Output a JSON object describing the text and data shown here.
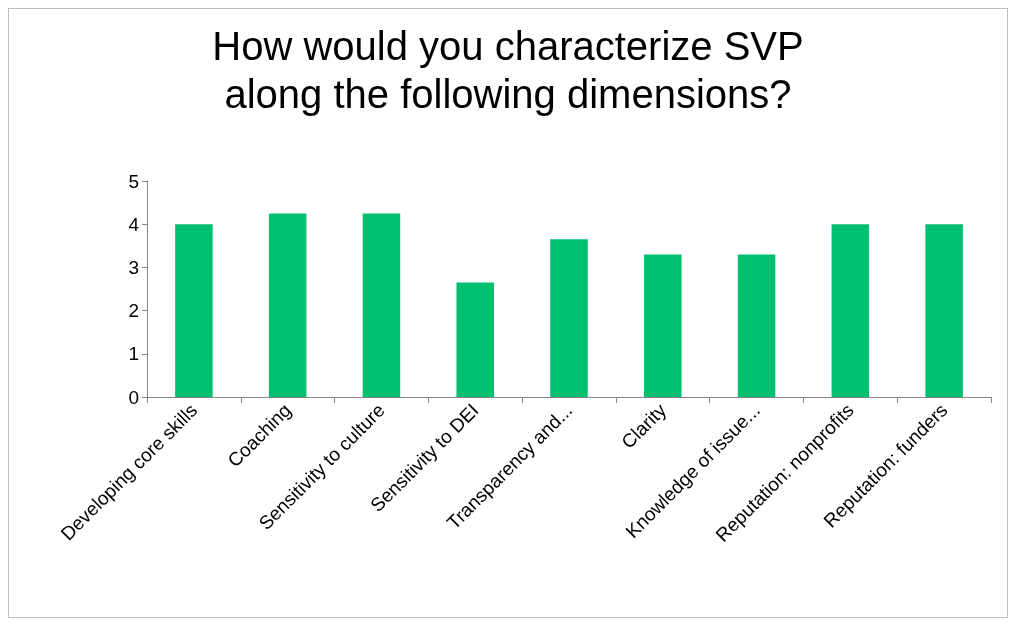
{
  "chart_data": {
    "type": "bar",
    "title": "How would you characterize SVP\nalong the following dimensions?",
    "categories": [
      "Developing core skills",
      "Coaching",
      "Sensitivity to culture",
      "Sensitivity to DEI",
      "Transparency and...",
      "Clarity",
      "Knowledge of issue...",
      "Reputation: nonprofits",
      "Reputation: funders"
    ],
    "values": [
      4,
      4.25,
      4.25,
      2.65,
      3.65,
      3.3,
      3.3,
      4,
      4
    ],
    "color": "#00bf6f",
    "ylim": [
      0,
      5
    ],
    "yticks": [
      0,
      1,
      2,
      3,
      4,
      5
    ],
    "grid": false
  }
}
